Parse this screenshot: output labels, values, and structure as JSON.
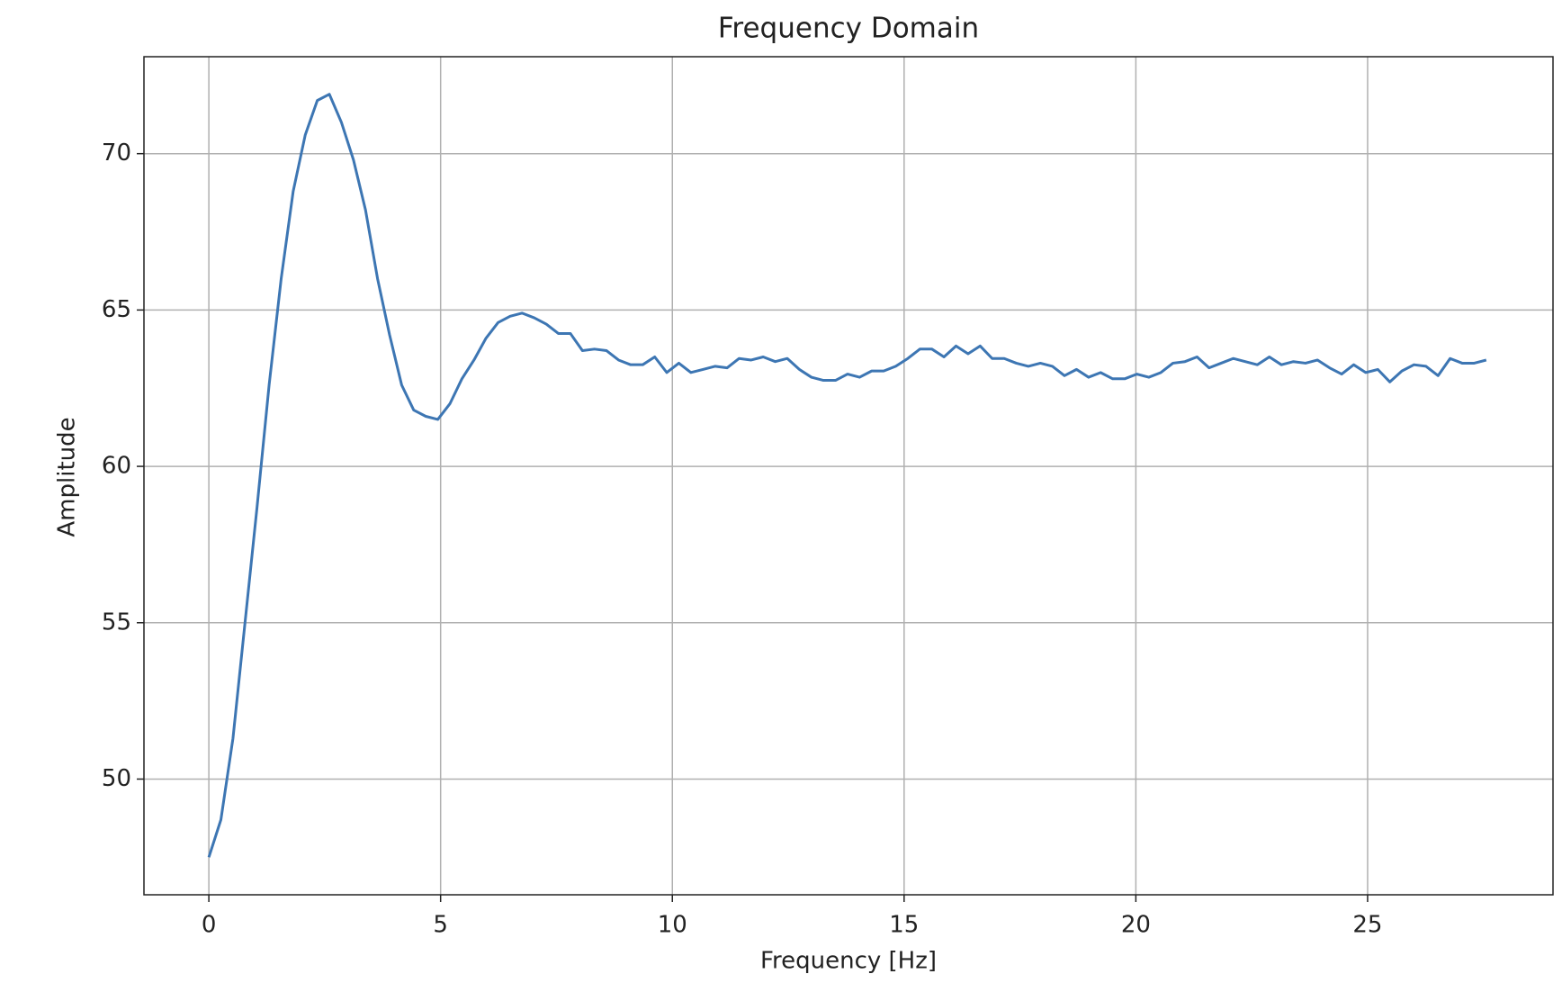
{
  "chart_data": {
    "type": "line",
    "title": "Frequency Domain",
    "xlabel": "Frequency [Hz]",
    "ylabel": "Amplitude",
    "x": [
      0,
      0.26,
      0.52,
      0.78,
      1.04,
      1.3,
      1.56,
      1.82,
      2.08,
      2.34,
      2.6,
      2.86,
      3.12,
      3.38,
      3.64,
      3.9,
      4.16,
      4.42,
      4.68,
      4.94,
      5.2,
      5.46,
      5.72,
      5.98,
      6.24,
      6.5,
      6.76,
      7.02,
      7.28,
      7.54,
      7.8,
      8.06,
      8.32,
      8.58,
      8.84,
      9.1,
      9.36,
      9.62,
      9.88,
      10.14,
      10.4,
      10.66,
      10.92,
      11.18,
      11.44,
      11.7,
      11.96,
      12.22,
      12.48,
      12.74,
      13,
      13.26,
      13.52,
      13.78,
      14.04,
      14.3,
      14.56,
      14.82,
      15.08,
      15.34,
      15.6,
      15.86,
      16.12,
      16.38,
      16.64,
      16.9,
      17.16,
      17.42,
      17.68,
      17.94,
      18.2,
      18.46,
      18.72,
      18.98,
      19.24,
      19.5,
      19.76,
      20.02,
      20.28,
      20.54,
      20.8,
      21.06,
      21.32,
      21.58,
      21.84,
      22.1,
      22.36,
      22.62,
      22.88,
      23.14,
      23.4,
      23.66,
      23.92,
      24.18,
      24.44,
      24.7,
      24.96,
      25.22,
      25.48,
      25.74,
      26,
      26.26,
      26.52,
      26.78,
      27.04,
      27.3,
      27.56
    ],
    "series": [
      {
        "name": "Amplitude",
        "color": "#3d76b3",
        "values": [
          47.5,
          48.7,
          51.3,
          55.0,
          58.7,
          62.6,
          66.0,
          68.8,
          70.6,
          71.7,
          71.9,
          71.0,
          69.8,
          68.2,
          66.0,
          64.2,
          62.6,
          61.8,
          61.6,
          61.5,
          62.0,
          62.8,
          63.4,
          64.1,
          64.6,
          64.8,
          64.9,
          64.75,
          64.55,
          64.25,
          64.25,
          63.7,
          63.75,
          63.7,
          63.4,
          63.25,
          63.25,
          63.5,
          63.0,
          63.3,
          63.0,
          63.1,
          63.2,
          63.15,
          63.45,
          63.4,
          63.5,
          63.35,
          63.45,
          63.1,
          62.85,
          62.75,
          62.75,
          62.95,
          62.85,
          63.05,
          63.05,
          63.2,
          63.45,
          63.75,
          63.75,
          63.5,
          63.85,
          63.6,
          63.85,
          63.45,
          63.45,
          63.3,
          63.2,
          63.3,
          63.2,
          62.9,
          63.1,
          62.85,
          63.0,
          62.8,
          62.8,
          62.95,
          62.85,
          63.0,
          63.3,
          63.35,
          63.5,
          63.15,
          63.3,
          63.45,
          63.35,
          63.25,
          63.5,
          63.25,
          63.35,
          63.3,
          63.4,
          63.15,
          62.95,
          63.25,
          63.0,
          63.1,
          62.7,
          63.05,
          63.25,
          63.2,
          62.9,
          63.45,
          63.3,
          63.3,
          63.4
        ]
      }
    ],
    "xlim": [
      -1.4,
      29.0
    ],
    "ylim": [
      46.3,
      73.1
    ],
    "xticks": [
      0,
      5,
      10,
      15,
      20,
      25
    ],
    "yticks": [
      50,
      55,
      60,
      65,
      70
    ],
    "grid": true
  }
}
